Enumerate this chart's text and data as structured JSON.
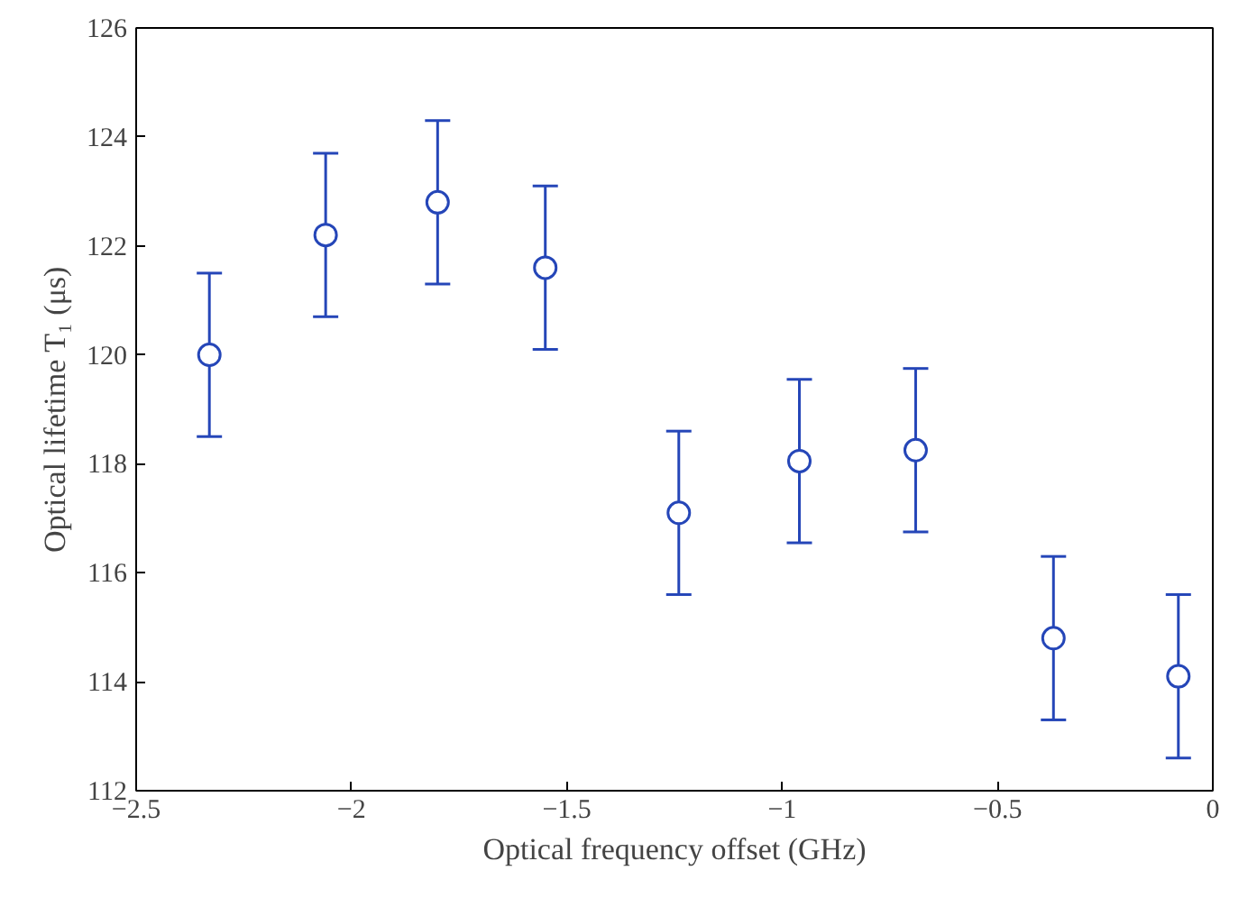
{
  "chart_data": {
    "type": "scatter",
    "xlabel": "Optical frequency offset (GHz)",
    "ylabel": "Optical lifetime T₁ (μs)",
    "x": [
      -2.33,
      -2.06,
      -1.8,
      -1.55,
      -1.24,
      -0.96,
      -0.69,
      -0.37,
      -0.08
    ],
    "series": [
      {
        "color": "#2546b8",
        "values": [
          120.0,
          122.2,
          122.8,
          121.6,
          117.1,
          118.05,
          118.25,
          114.8,
          114.1
        ],
        "errors": [
          1.5,
          1.5,
          1.5,
          1.5,
          1.5,
          1.5,
          1.5,
          1.5,
          1.5
        ]
      }
    ],
    "xlim": [
      -2.5,
      0
    ],
    "xticks": [
      -2.5,
      -2,
      -1.5,
      -1,
      -0.5,
      0
    ],
    "ylim": [
      112,
      126
    ],
    "yticks": [
      112,
      114,
      116,
      118,
      120,
      122,
      124,
      126
    ],
    "marker": "circle",
    "grid": false
  }
}
